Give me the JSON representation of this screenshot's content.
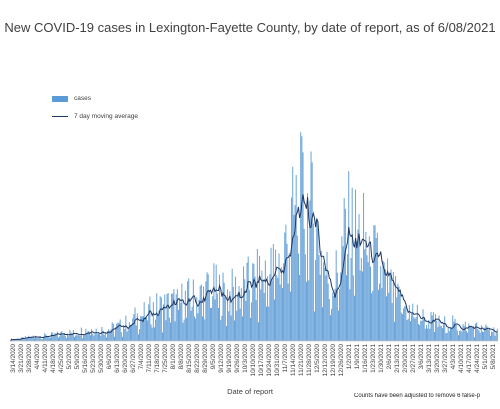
{
  "chart_data": {
    "type": "bar",
    "title": "New COVID-19 cases in Lexington-Fayette County, by date of report, as of 6/08/2021",
    "xlabel": "Date of report",
    "ylabel": "",
    "footnote": "Counts have been adjusted to remove 6 false-p",
    "legend": {
      "placement": "top-left",
      "entries": [
        {
          "name": "cases",
          "kind": "bar",
          "color": "#5b9bd5"
        },
        {
          "name": "7 day moving average",
          "kind": "line",
          "color": "#1f3864"
        }
      ]
    },
    "grid": false,
    "ylim": [
      0,
      500
    ],
    "tick_labels": [
      "3/14/2020",
      "3/21/2020",
      "3/28/2020",
      "4/4/2020",
      "4/11/2020",
      "4/18/2020",
      "4/25/2020",
      "5/2/2020",
      "5/9/2020",
      "5/16/2020",
      "5/23/2020",
      "5/30/2020",
      "6/6/2020",
      "6/13/2020",
      "6/20/2020",
      "6/27/2020",
      "7/4/2020",
      "7/11/2020",
      "7/18/2020",
      "7/25/2020",
      "8/1/2020",
      "8/8/2020",
      "8/15/2020",
      "8/22/2020",
      "8/29/2020",
      "9/5/2020",
      "9/12/2020",
      "9/19/2020",
      "9/26/2020",
      "10/3/2020",
      "10/10/2020",
      "10/17/2020",
      "10/24/2020",
      "10/31/2020",
      "11/7/2020",
      "11/14/2020",
      "11/21/2020",
      "11/28/2020",
      "12/5/2020",
      "12/12/2020",
      "12/19/2020",
      "12/26/2020",
      "1/2/2021",
      "1/9/2021",
      "1/16/2021",
      "1/23/2021",
      "1/30/2021",
      "2/6/2021",
      "2/13/2021",
      "2/20/2021",
      "2/27/2021",
      "3/6/2021",
      "3/13/2021",
      "3/20/2021",
      "3/27/2021",
      "4/3/2021",
      "4/10/2021",
      "4/17/2021",
      "4/24/2021",
      "5/1/2021",
      "5/8/2021"
    ],
    "weekly_average_cases": [
      3,
      4,
      6,
      8,
      9,
      10,
      12,
      16,
      14,
      19,
      22,
      20,
      21,
      24,
      28,
      36,
      45,
      50,
      58,
      62,
      66,
      70,
      76,
      78,
      82,
      96,
      90,
      84,
      88,
      96,
      104,
      110,
      118,
      130,
      155,
      200,
      250,
      245,
      215,
      150,
      100,
      125,
      205,
      195,
      185,
      165,
      130,
      110,
      80,
      65,
      55,
      45,
      40,
      35,
      30,
      32,
      28,
      26,
      25,
      22,
      20
    ]
  }
}
